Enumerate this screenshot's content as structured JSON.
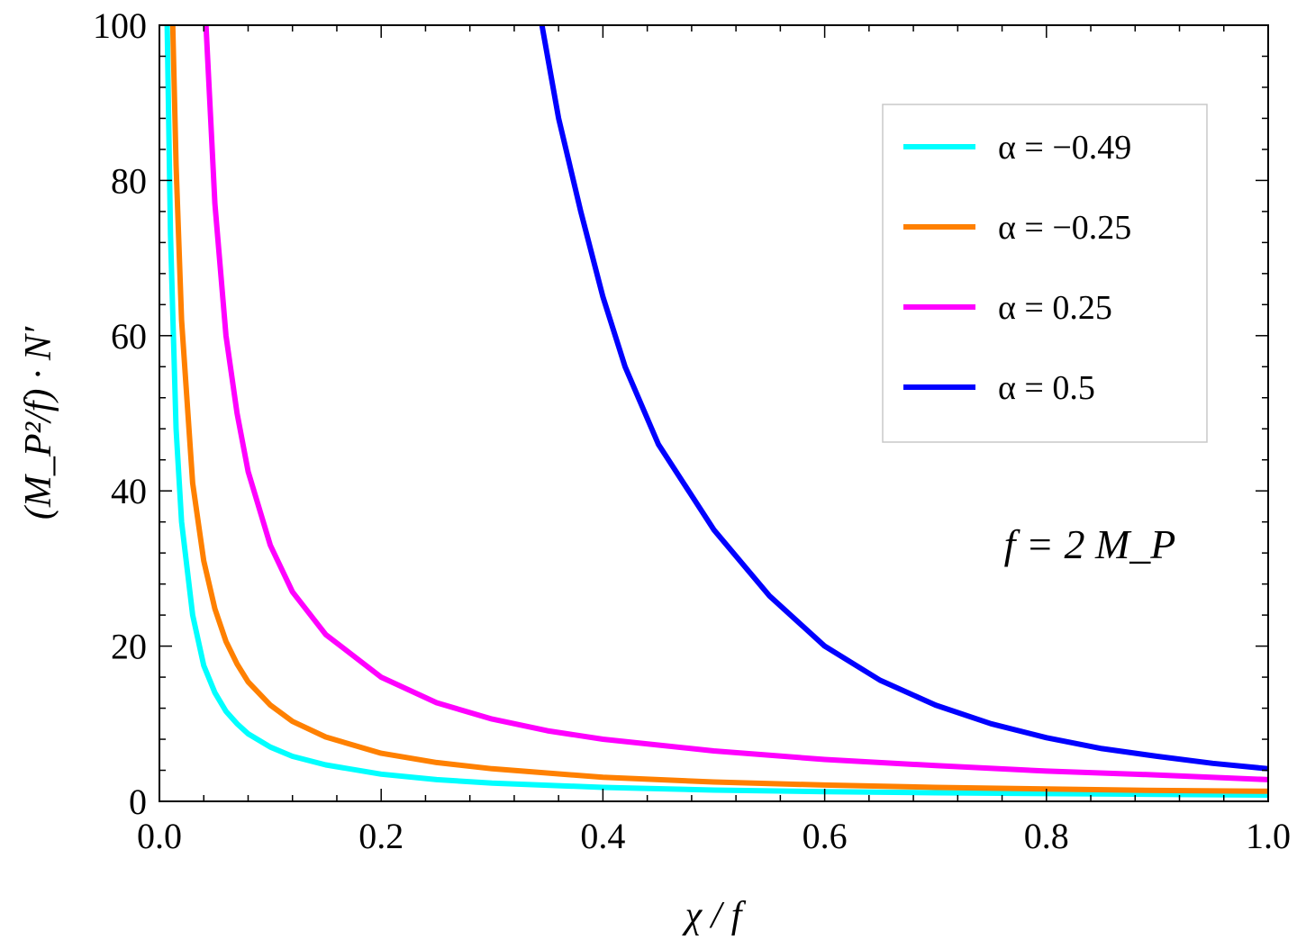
{
  "chart_data": {
    "type": "line",
    "title": "",
    "xlabel": "χ / f",
    "ylabel": "(M_P²/f) · N′",
    "xlim": [
      0.0,
      1.0
    ],
    "ylim": [
      0,
      100
    ],
    "x_ticks": [
      "0.0",
      "0.2",
      "0.4",
      "0.6",
      "0.8",
      "1.0"
    ],
    "y_ticks": [
      "0",
      "20",
      "40",
      "60",
      "80",
      "100"
    ],
    "grid": false,
    "legend_position": "top-right",
    "annotation": "f = 2 M_P",
    "series": [
      {
        "name": "α = −0.49",
        "color": "#00ffff",
        "points": [
          [
            0.007,
            100
          ],
          [
            0.01,
            73
          ],
          [
            0.015,
            48
          ],
          [
            0.02,
            36
          ],
          [
            0.03,
            24
          ],
          [
            0.04,
            17.5
          ],
          [
            0.05,
            14
          ],
          [
            0.06,
            11.6
          ],
          [
            0.07,
            10
          ],
          [
            0.08,
            8.7
          ],
          [
            0.1,
            7.0
          ],
          [
            0.12,
            5.8
          ],
          [
            0.15,
            4.7
          ],
          [
            0.2,
            3.5
          ],
          [
            0.25,
            2.8
          ],
          [
            0.3,
            2.35
          ],
          [
            0.4,
            1.8
          ],
          [
            0.5,
            1.45
          ],
          [
            0.6,
            1.25
          ],
          [
            0.7,
            1.1
          ],
          [
            0.8,
            1.0
          ],
          [
            0.9,
            0.9
          ],
          [
            1.0,
            0.8
          ]
        ]
      },
      {
        "name": "α = −0.25",
        "color": "#ff8000",
        "points": [
          [
            0.012,
            100
          ],
          [
            0.015,
            82
          ],
          [
            0.02,
            62
          ],
          [
            0.03,
            41
          ],
          [
            0.04,
            31
          ],
          [
            0.05,
            24.8
          ],
          [
            0.06,
            20.6
          ],
          [
            0.07,
            17.7
          ],
          [
            0.08,
            15.4
          ],
          [
            0.1,
            12.4
          ],
          [
            0.12,
            10.3
          ],
          [
            0.15,
            8.3
          ],
          [
            0.2,
            6.2
          ],
          [
            0.25,
            5.0
          ],
          [
            0.3,
            4.2
          ],
          [
            0.4,
            3.1
          ],
          [
            0.5,
            2.5
          ],
          [
            0.6,
            2.1
          ],
          [
            0.7,
            1.8
          ],
          [
            0.8,
            1.6
          ],
          [
            0.9,
            1.4
          ],
          [
            1.0,
            1.3
          ]
        ]
      },
      {
        "name": "α = 0.25",
        "color": "#ff00ff",
        "points": [
          [
            0.042,
            100
          ],
          [
            0.05,
            77
          ],
          [
            0.06,
            60
          ],
          [
            0.07,
            50
          ],
          [
            0.08,
            42.5
          ],
          [
            0.1,
            33
          ],
          [
            0.12,
            27
          ],
          [
            0.15,
            21.5
          ],
          [
            0.2,
            16
          ],
          [
            0.25,
            12.7
          ],
          [
            0.3,
            10.6
          ],
          [
            0.35,
            9.1
          ],
          [
            0.4,
            8.0
          ],
          [
            0.5,
            6.5
          ],
          [
            0.6,
            5.4
          ],
          [
            0.7,
            4.6
          ],
          [
            0.8,
            3.9
          ],
          [
            0.9,
            3.4
          ],
          [
            1.0,
            2.8
          ]
        ]
      },
      {
        "name": "α = 0.5",
        "color": "#0000ff",
        "points": [
          [
            0.345,
            100
          ],
          [
            0.36,
            88
          ],
          [
            0.38,
            76
          ],
          [
            0.4,
            65
          ],
          [
            0.42,
            56
          ],
          [
            0.45,
            46
          ],
          [
            0.5,
            35
          ],
          [
            0.55,
            26.5
          ],
          [
            0.6,
            20
          ],
          [
            0.65,
            15.6
          ],
          [
            0.7,
            12.4
          ],
          [
            0.75,
            10.0
          ],
          [
            0.8,
            8.2
          ],
          [
            0.85,
            6.8
          ],
          [
            0.9,
            5.8
          ],
          [
            0.95,
            4.9
          ],
          [
            1.0,
            4.2
          ]
        ]
      }
    ]
  }
}
